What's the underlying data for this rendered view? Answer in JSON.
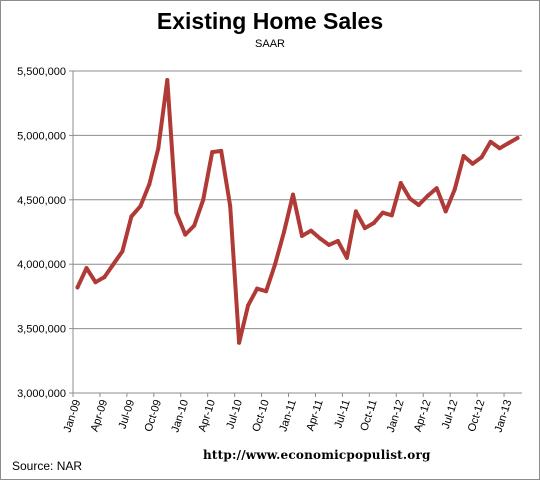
{
  "chart_data": {
    "type": "line",
    "title": "Existing Home Sales",
    "subtitle": "SAAR",
    "xlabel": "",
    "ylabel": "",
    "source": "Source:  NAR",
    "watermark": "http://www.economicpopulist.org",
    "ylim": [
      3000000,
      5500000
    ],
    "y_ticks": [
      3000000,
      3500000,
      4000000,
      4500000,
      5000000,
      5500000
    ],
    "y_tick_labels": [
      "3,000,000",
      "3,500,000",
      "4,000,000",
      "4,500,000",
      "5,000,000",
      "5,500,000"
    ],
    "x_tick_labels": [
      "Jan-09",
      "Apr-09",
      "Jul-09",
      "Oct-09",
      "Jan-10",
      "Apr-10",
      "Jul-10",
      "Oct-10",
      "Jan-11",
      "Apr-11",
      "Jul-11",
      "Oct-11",
      "Jan-12",
      "Apr-12",
      "Jul-12",
      "Oct-12",
      "Jan-13"
    ],
    "grid": "horizontal",
    "legend": "none",
    "line_color": "#b03a36",
    "series": [
      {
        "x": [
          "Jan-09",
          "Feb-09",
          "Mar-09",
          "Apr-09",
          "May-09",
          "Jun-09",
          "Jul-09",
          "Aug-09",
          "Sep-09",
          "Oct-09",
          "Nov-09",
          "Dec-09",
          "Jan-10",
          "Feb-10",
          "Mar-10",
          "Apr-10",
          "May-10",
          "Jun-10",
          "Jul-10",
          "Aug-10",
          "Sep-10",
          "Oct-10",
          "Nov-10",
          "Dec-10",
          "Jan-11",
          "Feb-11",
          "Mar-11",
          "Apr-11",
          "May-11",
          "Jun-11",
          "Jul-11",
          "Aug-11",
          "Sep-11",
          "Oct-11",
          "Nov-11",
          "Dec-11",
          "Jan-12",
          "Feb-12",
          "Mar-12",
          "Apr-12",
          "May-12",
          "Jun-12",
          "Jul-12",
          "Aug-12",
          "Sep-12",
          "Oct-12",
          "Nov-12",
          "Dec-12",
          "Jan-13",
          "Feb-13"
        ],
        "values": [
          3820000,
          3970000,
          3860000,
          3900000,
          4000000,
          4100000,
          4370000,
          4450000,
          4620000,
          4900000,
          5430000,
          4400000,
          4230000,
          4300000,
          4500000,
          4870000,
          4880000,
          4450000,
          3390000,
          3680000,
          3810000,
          3790000,
          4000000,
          4250000,
          4540000,
          4220000,
          4260000,
          4200000,
          4150000,
          4180000,
          4050000,
          4410000,
          4280000,
          4320000,
          4400000,
          4380000,
          4630000,
          4510000,
          4460000,
          4530000,
          4590000,
          4410000,
          4580000,
          4840000,
          4780000,
          4830000,
          4950000,
          4900000,
          4940000,
          4980000
        ]
      }
    ]
  }
}
